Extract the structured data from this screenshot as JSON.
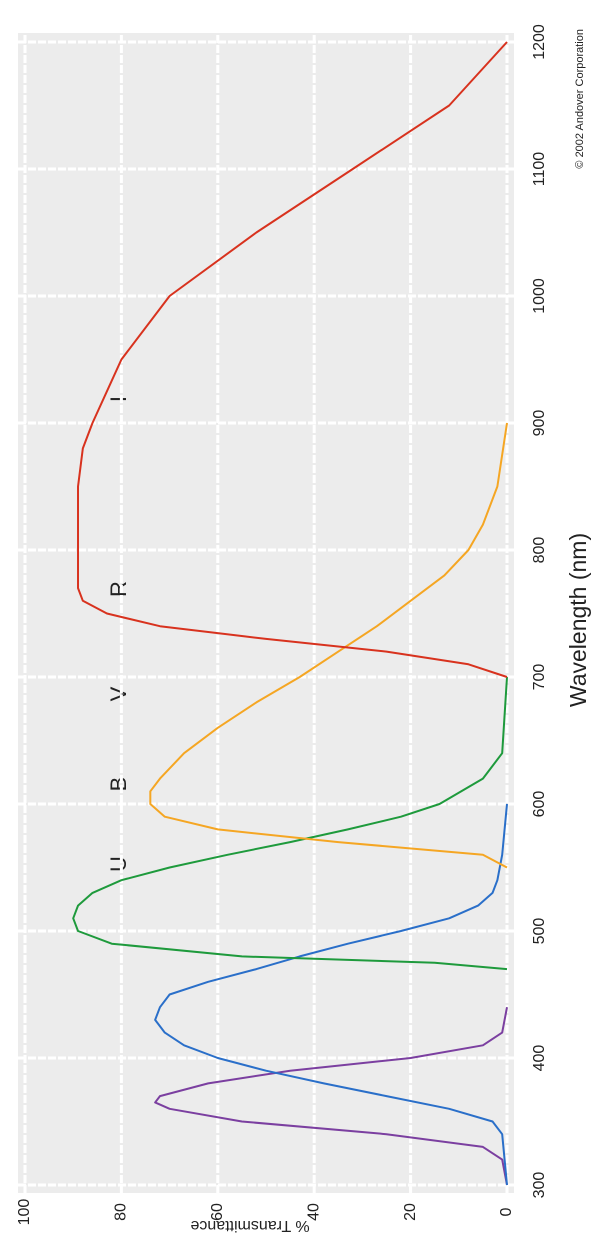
{
  "chart_data": {
    "type": "line",
    "x_label": "Wavelength (nm)",
    "y_label": "% Transmittance",
    "credit": "© 2002 Andover Corporation",
    "annotations": [
      "U",
      "B",
      "V",
      "R",
      "I"
    ],
    "xlim": [
      300,
      1200
    ],
    "xticks": [
      300,
      400,
      500,
      600,
      700,
      800,
      900,
      1000,
      1100,
      1200
    ],
    "ylim": [
      0,
      100
    ],
    "yticks": [
      0,
      20,
      40,
      60,
      80,
      100
    ],
    "grid": true,
    "series": [
      {
        "color": "#7b3fa0",
        "x": [
          300,
          320,
          330,
          340,
          350,
          360,
          365,
          370,
          380,
          390,
          400,
          410,
          420,
          440
        ],
        "values": [
          0,
          1,
          5,
          25,
          55,
          70,
          73,
          72,
          62,
          45,
          20,
          5,
          1,
          0
        ]
      },
      {
        "color": "#2a6fc9",
        "x": [
          300,
          340,
          350,
          360,
          370,
          380,
          390,
          400,
          410,
          420,
          430,
          440,
          450,
          460,
          470,
          480,
          490,
          500,
          510,
          520,
          530,
          540,
          560,
          600
        ],
        "values": [
          0,
          1,
          3,
          12,
          25,
          38,
          50,
          60,
          67,
          71,
          73,
          72,
          70,
          62,
          52,
          43,
          33,
          22,
          12,
          6,
          3,
          2,
          1,
          0
        ]
      },
      {
        "color": "#1e9a3c",
        "x": [
          470,
          475,
          480,
          490,
          500,
          510,
          520,
          530,
          540,
          550,
          560,
          570,
          580,
          590,
          600,
          620,
          640,
          700
        ],
        "values": [
          0,
          15,
          55,
          82,
          89,
          90,
          89,
          86,
          80,
          70,
          58,
          45,
          33,
          22,
          14,
          5,
          1,
          0
        ]
      },
      {
        "color": "#f5a623",
        "x": [
          550,
          560,
          570,
          580,
          590,
          600,
          610,
          620,
          640,
          660,
          680,
          700,
          720,
          740,
          760,
          780,
          800,
          820,
          850,
          900
        ],
        "values": [
          0,
          5,
          35,
          60,
          71,
          74,
          74,
          72,
          67,
          60,
          52,
          43,
          35,
          27,
          20,
          13,
          8,
          5,
          2,
          0
        ]
      },
      {
        "color": "#d8321e",
        "x": [
          700,
          710,
          720,
          730,
          740,
          750,
          760,
          770,
          800,
          850,
          880,
          900,
          950,
          1000,
          1050,
          1100,
          1150,
          1200
        ],
        "values": [
          0,
          8,
          25,
          50,
          72,
          83,
          88,
          89,
          89,
          89,
          88,
          86,
          80,
          70,
          52,
          32,
          12,
          0
        ]
      }
    ]
  }
}
